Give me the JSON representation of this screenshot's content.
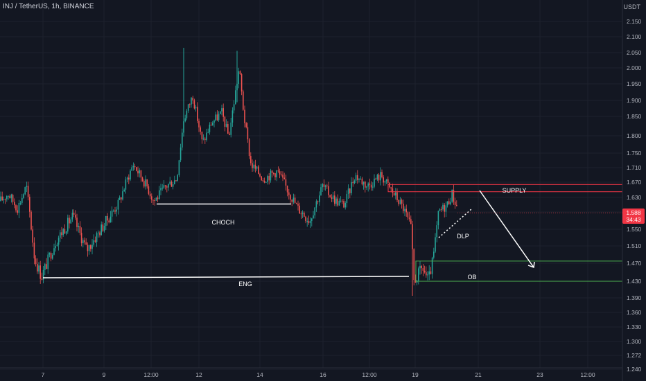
{
  "header": {
    "title": "INJ / TetherUS, 1h, BINANCE",
    "unit": "USDT"
  },
  "price_tag": {
    "price": "1.588",
    "countdown": "34:43"
  },
  "colors": {
    "background": "#131722",
    "up": "#26a69a",
    "down": "#ef5350",
    "supply": "#f23645",
    "ob": "#4caf50",
    "annotation": "#ffffff",
    "grid": "#1e222d"
  },
  "chart_data": {
    "type": "candlestick",
    "y_ticks": [
      "2.150",
      "2.100",
      "2.050",
      "2.000",
      "1.950",
      "1.900",
      "1.850",
      "1.800",
      "1.750",
      "1.710",
      "1.670",
      "1.630",
      "1.590",
      "1.550",
      "1.510",
      "1.470",
      "1.430",
      "1.390",
      "1.360",
      "1.330",
      "1.300",
      "1.272",
      "1.240"
    ],
    "x_ticks": [
      "7",
      "9",
      "12:00",
      "12",
      "14",
      "16",
      "12:00",
      "19",
      "21",
      "23",
      "12:00"
    ],
    "ylim": [
      1.225,
      2.2
    ],
    "anchors": [
      {
        "x": 0,
        "y": 1.62
      },
      {
        "x": 12,
        "y": 1.64
      },
      {
        "x": 25,
        "y": 1.6
      },
      {
        "x": 38,
        "y": 1.66
      },
      {
        "x": 50,
        "y": 1.48
      },
      {
        "x": 60,
        "y": 1.44
      },
      {
        "x": 80,
        "y": 1.52
      },
      {
        "x": 105,
        "y": 1.58
      },
      {
        "x": 125,
        "y": 1.5
      },
      {
        "x": 150,
        "y": 1.56
      },
      {
        "x": 170,
        "y": 1.61
      },
      {
        "x": 192,
        "y": 1.72
      },
      {
        "x": 212,
        "y": 1.66
      },
      {
        "x": 222,
        "y": 1.62
      },
      {
        "x": 240,
        "y": 1.66
      },
      {
        "x": 255,
        "y": 1.68
      },
      {
        "x": 265,
        "y": 1.85
      },
      {
        "x": 278,
        "y": 1.92
      },
      {
        "x": 292,
        "y": 1.78
      },
      {
        "x": 305,
        "y": 1.84
      },
      {
        "x": 320,
        "y": 1.87
      },
      {
        "x": 330,
        "y": 1.8
      },
      {
        "x": 345,
        "y": 2.0
      },
      {
        "x": 352,
        "y": 1.86
      },
      {
        "x": 362,
        "y": 1.72
      },
      {
        "x": 380,
        "y": 1.68
      },
      {
        "x": 400,
        "y": 1.7
      },
      {
        "x": 415,
        "y": 1.65
      },
      {
        "x": 430,
        "y": 1.6
      },
      {
        "x": 447,
        "y": 1.57
      },
      {
        "x": 465,
        "y": 1.66
      },
      {
        "x": 485,
        "y": 1.62
      },
      {
        "x": 497,
        "y": 1.61
      },
      {
        "x": 512,
        "y": 1.69
      },
      {
        "x": 530,
        "y": 1.66
      },
      {
        "x": 550,
        "y": 1.69
      },
      {
        "x": 560,
        "y": 1.66
      },
      {
        "x": 572,
        "y": 1.63
      },
      {
        "x": 582,
        "y": 1.6
      },
      {
        "x": 593,
        "y": 1.55
      },
      {
        "x": 597,
        "y": 1.43
      },
      {
        "x": 610,
        "y": 1.46
      },
      {
        "x": 618,
        "y": 1.43
      },
      {
        "x": 625,
        "y": 1.48
      },
      {
        "x": 633,
        "y": 1.59
      },
      {
        "x": 645,
        "y": 1.61
      },
      {
        "x": 652,
        "y": 1.64
      },
      {
        "x": 660,
        "y": 1.6
      }
    ],
    "zones": [
      {
        "label": "SUPPLY",
        "top": 1.664,
        "bottom": 1.645,
        "color": "#f23645"
      },
      {
        "label": "OB",
        "top": 1.475,
        "bottom": 1.43,
        "color": "#4caf50"
      }
    ],
    "annotations": [
      {
        "label": "CHOCH",
        "y": 1.612
      },
      {
        "label": "ENG",
        "y": 1.447
      },
      {
        "label": "DLP",
        "y": 1.54
      }
    ]
  }
}
